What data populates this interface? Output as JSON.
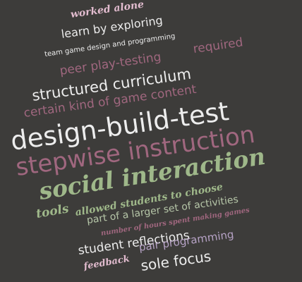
{
  "colors": {
    "background": "#3d3c3a",
    "pink": "#e2bccf",
    "white": "#ededed",
    "plum": "#a0677f",
    "green": "#9fb88a",
    "lavender": "#b7a3c6",
    "sage": "#b6c6a8"
  },
  "words": [
    {
      "text": "worked alone",
      "style": "script",
      "color": "pink"
    },
    {
      "text": "learn by exploring",
      "style": "sans",
      "color": "white"
    },
    {
      "text": "team game design and programming",
      "style": "sans",
      "color": "white"
    },
    {
      "text": "peer play-testing",
      "style": "sans",
      "color": "plum"
    },
    {
      "text": "required",
      "style": "sans",
      "color": "plum"
    },
    {
      "text": "structured curriculum",
      "style": "sans",
      "color": "white"
    },
    {
      "text": "certain kind of game content",
      "style": "sans",
      "color": "plum"
    },
    {
      "text": "design-build-test",
      "style": "sans",
      "color": "white"
    },
    {
      "text": "stepwise instruction",
      "style": "sans",
      "color": "plum"
    },
    {
      "text": "social interaction",
      "style": "script",
      "color": "green"
    },
    {
      "text": "tools",
      "style": "script",
      "color": "green"
    },
    {
      "text": "allowed students to choose",
      "style": "script",
      "color": "green"
    },
    {
      "text": "part of a larger set of activities",
      "style": "sans",
      "color": "sage"
    },
    {
      "text": "number of hours spent making games",
      "style": "script",
      "color": "plum"
    },
    {
      "text": "student reflections",
      "style": "sans",
      "color": "white"
    },
    {
      "text": "pair programming",
      "style": "sans",
      "color": "lavender"
    },
    {
      "text": "feedback",
      "style": "script",
      "color": "pink"
    },
    {
      "text": "sole focus",
      "style": "sans",
      "color": "white"
    }
  ]
}
